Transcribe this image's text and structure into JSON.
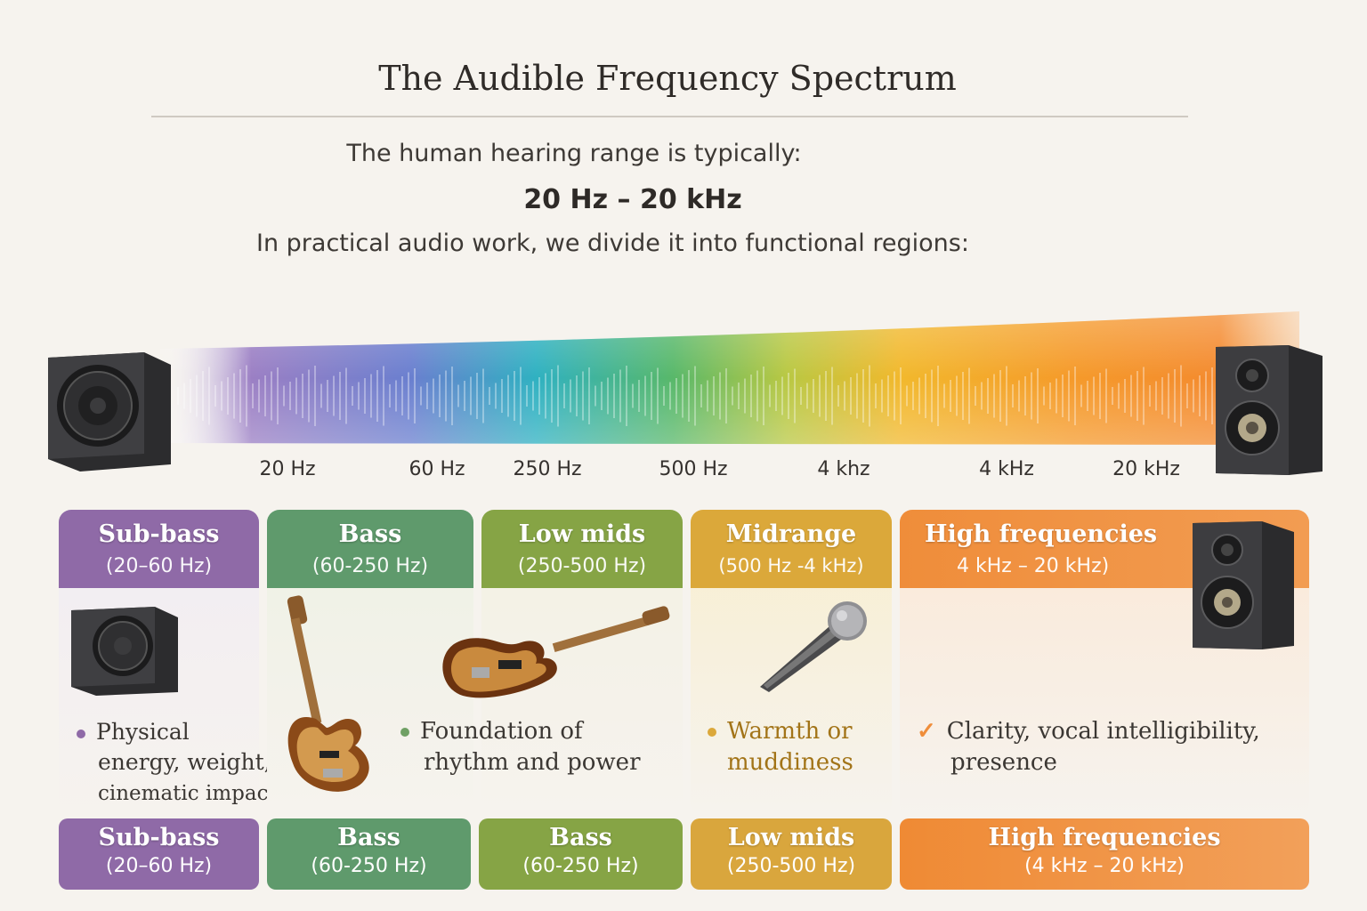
{
  "title": "The Audible Frequency Spectrum",
  "intro": "The human hearing range is typically:",
  "range": "20 Hz – 20 kHz",
  "regions_line": "In practical audio work, we divide it into functional regions:",
  "spectrum_labels": [
    "20 Hz",
    "60 Hz",
    "250 Hz",
    "500 Hz",
    "4 khz",
    "4 kHz",
    "20 kHz"
  ],
  "colors": {
    "sub_bass": "#8f6aa7",
    "bass": "#5f9a6c",
    "low_mids": "#86a445",
    "midrange": "#dba83a",
    "high": "#ef8d3a"
  },
  "cards": [
    {
      "title": "Sub-bass",
      "range": "(20–60 Hz)",
      "bullet": [
        "Physical",
        "energy, weight,",
        "cinematic impact"
      ],
      "icon": "subwoofer-icon"
    },
    {
      "title": "Bass",
      "range": "(60-250 Hz)",
      "bullet": [
        "Foundation of",
        "rhythm and power"
      ],
      "icon": "bass-guitar-icon"
    },
    {
      "title": "Low mids",
      "range": "(250-500 Hz)",
      "icon": "bass-guitar-icon"
    },
    {
      "title": "Midrange",
      "range": "(500 Hz -4 kHz)",
      "bullet": [
        "Warmth or",
        "muddiness"
      ],
      "icon": "microphone-icon"
    },
    {
      "title": "High frequencies",
      "range": "4 kHz – 20 kHz)",
      "bullet": [
        "Clarity, vocal intelligibility,",
        "presence"
      ],
      "icon": "speaker-icon"
    }
  ],
  "footer": [
    {
      "title": "Sub-bass",
      "range": "(20–60 Hz)"
    },
    {
      "title": "Bass",
      "range": "(60-250 Hz)"
    },
    {
      "title": "Bass",
      "range": "(60-250 Hz)"
    },
    {
      "title": "Low mids",
      "range": "(250-500 Hz)"
    },
    {
      "title": "High frequencies",
      "range": "(4 kHz – 20 kHz)"
    }
  ]
}
